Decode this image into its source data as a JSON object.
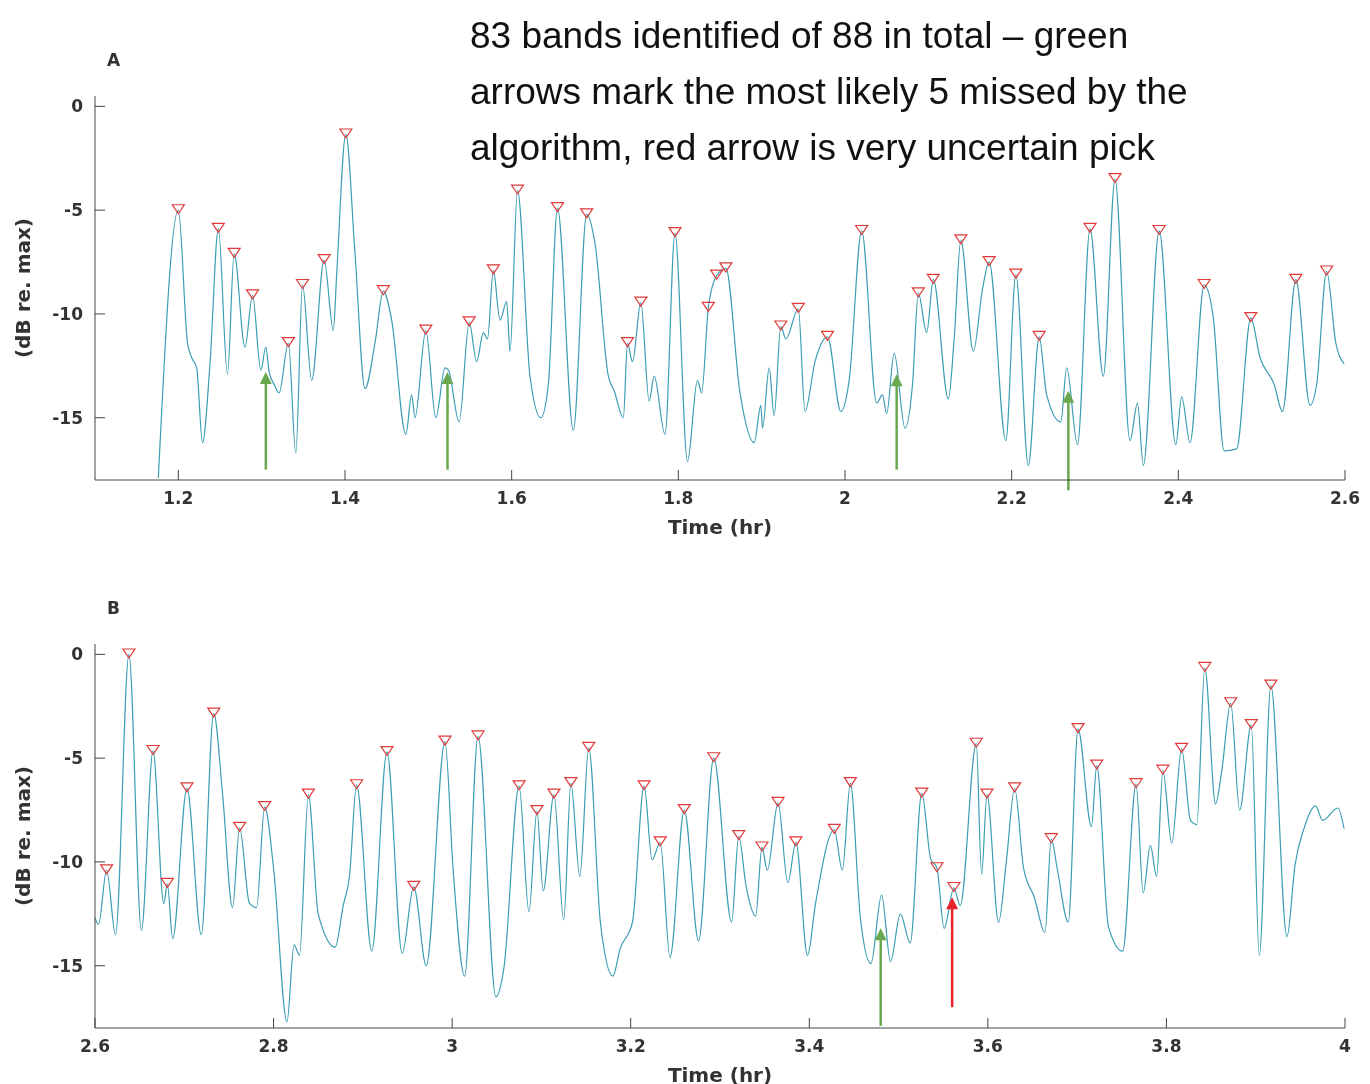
{
  "chart_data": [
    {
      "type": "line",
      "title": "A",
      "xlabel": "Time (hr)",
      "ylabel": "(dB re. max)",
      "xlim": [
        1.1,
        2.6
      ],
      "xticks": [
        1.2,
        1.4,
        1.6,
        1.8,
        2,
        2.2,
        2.4,
        2.6
      ],
      "ylim": [
        -18,
        0.5
      ],
      "yticks": [
        0,
        -5,
        -10,
        -15
      ],
      "annotations": [
        "83 bands identified of 88 in total – green arrows mark the most likely 5 missed by the algorithm, red arrow is very uncertain pick"
      ],
      "series": [
        {
          "type": "line",
          "color": "#3a9db3",
          "x": [
            1.176,
            1.2,
            1.211,
            1.216,
            1.222,
            1.229,
            1.238,
            1.248,
            1.259,
            1.267,
            1.28,
            1.289,
            1.299,
            1.305,
            1.309,
            1.315,
            1.321,
            1.332,
            1.341,
            1.349,
            1.36,
            1.375,
            1.386,
            1.39,
            1.401,
            1.412,
            1.424,
            1.436,
            1.446,
            1.456,
            1.473,
            1.48,
            1.484,
            1.497,
            1.509,
            1.52,
            1.524,
            1.537,
            1.549,
            1.558,
            1.566,
            1.571,
            1.578,
            1.586,
            1.594,
            1.598,
            1.607,
            1.622,
            1.635,
            1.644,
            1.655,
            1.674,
            1.69,
            1.7,
            1.716,
            1.723,
            1.734,
            1.739,
            1.745,
            1.755,
            1.765,
            1.771,
            1.784,
            1.796,
            1.811,
            1.823,
            1.828,
            1.836,
            1.846,
            1.857,
            1.874,
            1.891,
            1.899,
            1.901,
            1.909,
            1.915,
            1.923,
            1.929,
            1.944,
            1.952,
            1.964,
            1.979,
            1.995,
            2.005,
            2.02,
            2.038,
            2.045,
            2.05,
            2.059,
            2.072,
            2.081,
            2.088,
            2.098,
            2.106,
            2.124,
            2.131,
            2.139,
            2.154,
            2.165,
            2.173,
            2.193,
            2.205,
            2.22,
            2.233,
            2.242,
            2.259,
            2.266,
            2.279,
            2.294,
            2.31,
            2.324,
            2.342,
            2.351,
            2.358,
            2.377,
            2.397,
            2.404,
            2.414,
            2.431,
            2.442,
            2.455,
            2.47,
            2.487,
            2.498,
            2.515,
            2.525,
            2.541,
            2.558,
            2.566,
            2.578,
            2.589,
            2.599
          ],
          "values": [
            -17.9,
            -5,
            -11.4,
            -12.1,
            -12.6,
            -16.2,
            -12.4,
            -5.9,
            -12.9,
            -7.1,
            -11.6,
            -9.1,
            -12.7,
            -11.6,
            -12.8,
            -13.4,
            -13.8,
            -11.4,
            -16.7,
            -8.6,
            -13.2,
            -7.4,
            -10.8,
            -8.1,
            -1.35,
            -7.1,
            -13.6,
            -11.4,
            -8.9,
            -10.3,
            -15.8,
            -13.9,
            -15,
            -10.8,
            -15,
            -12.6,
            -12.7,
            -15.2,
            -10.4,
            -12.3,
            -10.9,
            -11.2,
            -7.9,
            -10.3,
            -9.4,
            -11.8,
            -4.05,
            -13,
            -15,
            -13.4,
            -4.9,
            -15.6,
            -5.2,
            -6.6,
            -13,
            -13.7,
            -15,
            -11.4,
            -12.3,
            -9.45,
            -14.2,
            -13,
            -15.8,
            -6.1,
            -17.1,
            -13.2,
            -13.8,
            -9.7,
            -8.15,
            -7.8,
            -13.8,
            -16.2,
            -14.4,
            -15.5,
            -12.6,
            -14.9,
            -10.6,
            -11.2,
            -9.75,
            -14.7,
            -12.3,
            -11.1,
            -14.7,
            -13.2,
            -6,
            -14.3,
            -13.9,
            -14.8,
            -11.9,
            -15.5,
            -13.4,
            -9,
            -10.9,
            -8.35,
            -14.1,
            -11.2,
            -6.45,
            -11.8,
            -8.8,
            -7.5,
            -16.1,
            -8.1,
            -17.3,
            -11.1,
            -13.9,
            -15.2,
            -12.6,
            -16.3,
            -5.9,
            -13,
            -3.5,
            -16.1,
            -14.3,
            -17.3,
            -6,
            -16.3,
            -14,
            -16.2,
            -8.6,
            -10.2,
            -16.6,
            -16.5,
            -10.2,
            -12.1,
            -13.4,
            -14.7,
            -8.35,
            -14.4,
            -13.4,
            -7.95,
            -11.4,
            -12.4
          ]
        },
        {
          "type": "scatter",
          "color": "#e03a3a",
          "marker": "triangle",
          "x": [
            1.2,
            1.248,
            1.267,
            1.289,
            1.332,
            1.349,
            1.375,
            1.401,
            1.446,
            1.497,
            1.549,
            1.578,
            1.607,
            1.655,
            1.69,
            1.739,
            1.755,
            1.796,
            1.836,
            1.846,
            1.857,
            1.923,
            1.944,
            1.979,
            2.02,
            2.088,
            2.106,
            2.139,
            2.173,
            2.205,
            2.233,
            2.294,
            2.324,
            2.377,
            2.431,
            2.487,
            2.541,
            2.578
          ],
          "values": [
            -5,
            -5.9,
            -7.1,
            -9.1,
            -11.4,
            -8.6,
            -7.4,
            -1.35,
            -8.9,
            -10.8,
            -10.4,
            -7.9,
            -4.05,
            -4.9,
            -5.2,
            -11.4,
            -9.45,
            -6.1,
            -9.7,
            -8.15,
            -7.8,
            -10.6,
            -9.75,
            -11.1,
            -6,
            -9,
            -8.35,
            -6.45,
            -7.5,
            -8.1,
            -11.1,
            -5.9,
            -3.5,
            -6,
            -8.6,
            -10.2,
            -8.35,
            -7.95
          ]
        }
      ]
    },
    {
      "type": "line",
      "title": "B",
      "xlabel": "Time (hr)",
      "ylabel": "(dB re. max)",
      "xlim": [
        2.6,
        4
      ],
      "xticks": [
        2.6,
        2.8,
        3,
        3.2,
        3.4,
        3.6,
        3.8,
        4
      ],
      "ylim": [
        -18,
        0.5
      ],
      "yticks": [
        0,
        -5,
        -10,
        -15
      ],
      "series": [
        {
          "type": "line",
          "color": "#3a9db3",
          "x": [
            2.6,
            2.604,
            2.613,
            2.623,
            2.638,
            2.652,
            2.665,
            2.677,
            2.681,
            2.687,
            2.703,
            2.719,
            2.733,
            2.743,
            2.754,
            2.762,
            2.773,
            2.781,
            2.79,
            2.8,
            2.815,
            2.823,
            2.829,
            2.839,
            2.85,
            2.869,
            2.878,
            2.885,
            2.893,
            2.91,
            2.927,
            2.944,
            2.957,
            2.971,
            2.992,
            3.001,
            3.014,
            3.029,
            3.049,
            3.058,
            3.075,
            3.086,
            3.095,
            3.102,
            3.114,
            3.125,
            3.133,
            3.143,
            3.153,
            3.166,
            3.18,
            3.188,
            3.202,
            3.215,
            3.224,
            3.233,
            3.244,
            3.26,
            3.276,
            3.293,
            3.313,
            3.321,
            3.329,
            3.34,
            3.347,
            3.353,
            3.365,
            3.376,
            3.385,
            3.398,
            3.407,
            3.428,
            3.437,
            3.446,
            3.457,
            3.469,
            3.481,
            3.491,
            3.502,
            3.513,
            3.526,
            3.536,
            3.543,
            3.551,
            3.562,
            3.569,
            3.587,
            3.593,
            3.599,
            3.612,
            3.621,
            3.63,
            3.64,
            3.652,
            3.664,
            3.671,
            3.678,
            3.69,
            3.701,
            3.716,
            3.722,
            3.735,
            3.751,
            3.766,
            3.774,
            3.782,
            3.789,
            3.796,
            3.806,
            3.817,
            3.827,
            3.834,
            3.843,
            3.855,
            3.862,
            3.872,
            3.882,
            3.895,
            3.904,
            3.917,
            3.935,
            3.944,
            3.954,
            3.967,
            3.975,
            3.992,
            3.999
          ],
          "values": [
            -12.7,
            -13,
            -10.4,
            -13.5,
            0,
            -13.3,
            -4.65,
            -12,
            -11.05,
            -13.7,
            -6.45,
            -13.5,
            -2.85,
            -6.8,
            -12.2,
            -8.35,
            -12,
            -12.2,
            -7.35,
            -10.3,
            -17.7,
            -14,
            -14.5,
            -6.75,
            -12.5,
            -14.1,
            -12.1,
            -10.7,
            -6.3,
            -14.3,
            -4.7,
            -14.4,
            -11.2,
            -15,
            -4.2,
            -10.3,
            -15.5,
            -3.95,
            -16.5,
            -15.1,
            -6.35,
            -12.4,
            -7.55,
            -11.4,
            -6.75,
            -12.8,
            -6.2,
            -10.7,
            -4.5,
            -12.9,
            -15.5,
            -14.2,
            -12.9,
            -6.35,
            -9.9,
            -9.05,
            -14.6,
            -7.5,
            -13.8,
            -5,
            -12.9,
            -8.75,
            -11.1,
            -12.6,
            -9.3,
            -10.4,
            -7.15,
            -11,
            -9.05,
            -14.5,
            -12,
            -8.45,
            -10.4,
            -6.2,
            -12.6,
            -14.9,
            -11.6,
            -14.8,
            -12.5,
            -13.9,
            -6.7,
            -9.85,
            -10.3,
            -13.2,
            -11.25,
            -12.1,
            -4.3,
            -10.6,
            -6.75,
            -12.9,
            -9.85,
            -6.45,
            -10.3,
            -11.7,
            -13.4,
            -8.9,
            -10.4,
            -12.9,
            -3.6,
            -8.3,
            -5.35,
            -13.1,
            -14.3,
            -6.25,
            -11.5,
            -9.2,
            -10.7,
            -5.6,
            -9.1,
            -4.55,
            -8,
            -8.2,
            -0.65,
            -7.2,
            -5.6,
            -2.35,
            -7.5,
            -3.4,
            -14.5,
            -1.5,
            -13.6,
            -10.15,
            -8.4,
            -7.3,
            -8,
            -7.4,
            -8.4
          ]
        },
        {
          "type": "scatter",
          "color": "#e03a3a",
          "marker": "triangle",
          "x": [
            2.613,
            2.638,
            2.665,
            2.681,
            2.703,
            2.733,
            2.762,
            2.79,
            2.839,
            2.893,
            2.927,
            2.957,
            2.992,
            3.029,
            3.075,
            3.095,
            3.114,
            3.133,
            3.153,
            3.215,
            3.233,
            3.26,
            3.293,
            3.321,
            3.347,
            3.365,
            3.385,
            3.428,
            3.446,
            3.526,
            3.543,
            3.562,
            3.587,
            3.599,
            3.63,
            3.671,
            3.701,
            3.722,
            3.766,
            3.796,
            3.817,
            3.843,
            3.872,
            3.895,
            3.917
          ],
          "values": [
            -10.4,
            0,
            -4.65,
            -11.05,
            -6.45,
            -2.85,
            -8.35,
            -7.35,
            -6.75,
            -6.3,
            -4.7,
            -11.2,
            -4.2,
            -3.95,
            -6.35,
            -7.55,
            -6.75,
            -6.2,
            -4.5,
            -6.35,
            -9.05,
            -7.5,
            -5,
            -8.75,
            -9.3,
            -7.15,
            -9.05,
            -8.45,
            -6.2,
            -6.7,
            -10.3,
            -11.25,
            -4.3,
            -6.75,
            -6.45,
            -8.9,
            -3.6,
            -5.35,
            -6.25,
            -5.6,
            -4.55,
            -0.65,
            -2.35,
            -3.4,
            -1.5
          ]
        }
      ]
    }
  ]
}
